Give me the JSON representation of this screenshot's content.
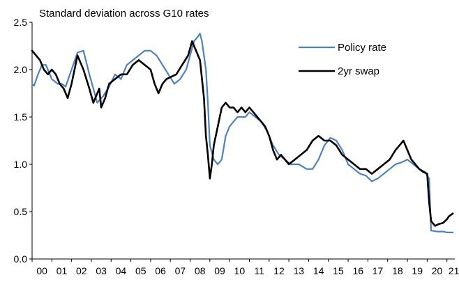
{
  "chart_data": {
    "type": "line",
    "title": "Standard deviation across G10 rates",
    "xlabel": "",
    "ylabel": "",
    "x_tick_labels": [
      "00",
      "01",
      "02",
      "03",
      "04",
      "05",
      "06",
      "07",
      "08",
      "09",
      "10",
      "11",
      "12",
      "13",
      "14",
      "15",
      "16",
      "17",
      "18",
      "19",
      "20",
      "21"
    ],
    "xlim": [
      2000,
      2021.4
    ],
    "ylim": [
      0.0,
      2.5
    ],
    "y_ticks": [
      0.0,
      0.5,
      1.0,
      1.5,
      2.0,
      2.5
    ],
    "y_tick_labels": [
      "0.0",
      "0.5",
      "1.0",
      "1.5",
      "2.0",
      "2.5"
    ],
    "grid": false,
    "legend_position": "top-right",
    "series": [
      {
        "name": "Policy rate",
        "color": "#4f81bd",
        "x": [
          2000.0,
          2000.1,
          2000.3,
          2000.5,
          2000.7,
          2001.0,
          2001.3,
          2001.5,
          2001.7,
          2002.0,
          2002.3,
          2002.6,
          2002.9,
          2003.1,
          2003.3,
          2003.6,
          2003.9,
          2004.2,
          2004.5,
          2004.8,
          2005.1,
          2005.4,
          2005.7,
          2006.0,
          2006.3,
          2006.6,
          2006.9,
          2007.2,
          2007.5,
          2007.8,
          2008.0,
          2008.2,
          2008.4,
          2008.5,
          2008.6,
          2008.8,
          2008.9,
          2009.0,
          2009.2,
          2009.4,
          2009.6,
          2009.8,
          2010.0,
          2010.2,
          2010.4,
          2010.6,
          2010.8,
          2011.0,
          2011.3,
          2011.6,
          2011.9,
          2012.2,
          2012.5,
          2012.8,
          2013.1,
          2013.5,
          2013.9,
          2014.2,
          2014.5,
          2014.8,
          2015.1,
          2015.4,
          2015.7,
          2016.0,
          2016.3,
          2016.6,
          2016.9,
          2017.2,
          2017.5,
          2017.8,
          2018.1,
          2018.4,
          2018.7,
          2019.0,
          2019.3,
          2019.6,
          2019.9,
          2020.0,
          2020.1,
          2020.2,
          2020.5,
          2020.8,
          2021.0,
          2021.3
        ],
        "y": [
          1.85,
          1.83,
          1.95,
          2.05,
          2.05,
          1.9,
          1.85,
          1.85,
          1.82,
          2.0,
          2.18,
          2.2,
          1.95,
          1.8,
          1.65,
          1.72,
          1.82,
          1.95,
          1.9,
          2.05,
          2.1,
          2.15,
          2.2,
          2.2,
          2.15,
          2.05,
          1.95,
          1.85,
          1.9,
          2.0,
          2.15,
          2.3,
          2.35,
          2.38,
          2.3,
          2.0,
          1.65,
          1.2,
          1.05,
          1.0,
          1.05,
          1.3,
          1.4,
          1.45,
          1.5,
          1.5,
          1.5,
          1.55,
          1.5,
          1.45,
          1.35,
          1.2,
          1.1,
          1.05,
          1.0,
          1.0,
          0.95,
          0.95,
          1.05,
          1.2,
          1.28,
          1.25,
          1.15,
          1.0,
          0.95,
          0.9,
          0.88,
          0.82,
          0.85,
          0.9,
          0.95,
          1.0,
          1.02,
          1.05,
          1.0,
          0.95,
          0.92,
          0.88,
          0.85,
          0.3,
          0.29,
          0.29,
          0.28,
          0.28
        ]
      },
      {
        "name": "2yr swap",
        "color": "#000000",
        "x": [
          2000.0,
          2000.2,
          2000.4,
          2000.6,
          2000.8,
          2001.0,
          2001.2,
          2001.4,
          2001.6,
          2001.8,
          2002.0,
          2002.3,
          2002.6,
          2002.9,
          2003.1,
          2003.4,
          2003.5,
          2003.7,
          2003.9,
          2004.2,
          2004.5,
          2004.8,
          2005.1,
          2005.4,
          2005.7,
          2006.0,
          2006.2,
          2006.4,
          2006.6,
          2006.8,
          2007.0,
          2007.3,
          2007.6,
          2007.9,
          2008.1,
          2008.3,
          2008.5,
          2008.7,
          2008.8,
          2008.9,
          2009.0,
          2009.1,
          2009.2,
          2009.4,
          2009.6,
          2009.8,
          2010.0,
          2010.2,
          2010.4,
          2010.6,
          2010.8,
          2011.0,
          2011.2,
          2011.4,
          2011.6,
          2011.8,
          2012.0,
          2012.2,
          2012.4,
          2012.6,
          2012.8,
          2013.0,
          2013.3,
          2013.6,
          2013.9,
          2014.2,
          2014.5,
          2014.8,
          2015.1,
          2015.4,
          2015.7,
          2016.0,
          2016.3,
          2016.6,
          2016.9,
          2017.2,
          2017.5,
          2017.8,
          2018.1,
          2018.4,
          2018.6,
          2018.8,
          2019.0,
          2019.2,
          2019.4,
          2019.6,
          2019.8,
          2020.0,
          2020.1,
          2020.2,
          2020.4,
          2020.6,
          2020.8,
          2021.0,
          2021.1,
          2021.3
        ],
        "y": [
          2.2,
          2.15,
          2.1,
          2.0,
          1.95,
          2.0,
          1.95,
          1.85,
          1.8,
          1.7,
          1.85,
          2.15,
          2.0,
          1.8,
          1.65,
          1.8,
          1.6,
          1.7,
          1.85,
          1.9,
          1.95,
          1.95,
          2.05,
          2.1,
          2.05,
          2.0,
          1.85,
          1.75,
          1.85,
          1.9,
          1.92,
          1.95,
          2.05,
          2.15,
          2.3,
          2.2,
          2.1,
          1.7,
          1.3,
          1.1,
          0.85,
          1.0,
          1.2,
          1.4,
          1.6,
          1.65,
          1.6,
          1.6,
          1.55,
          1.6,
          1.55,
          1.6,
          1.55,
          1.5,
          1.45,
          1.4,
          1.3,
          1.15,
          1.05,
          1.1,
          1.05,
          1.0,
          1.05,
          1.1,
          1.15,
          1.25,
          1.3,
          1.25,
          1.25,
          1.2,
          1.1,
          1.05,
          1.0,
          0.95,
          0.95,
          0.9,
          0.95,
          1.0,
          1.05,
          1.15,
          1.2,
          1.25,
          1.15,
          1.05,
          1.0,
          0.95,
          0.92,
          0.9,
          0.6,
          0.4,
          0.35,
          0.37,
          0.38,
          0.42,
          0.45,
          0.48
        ]
      }
    ]
  }
}
